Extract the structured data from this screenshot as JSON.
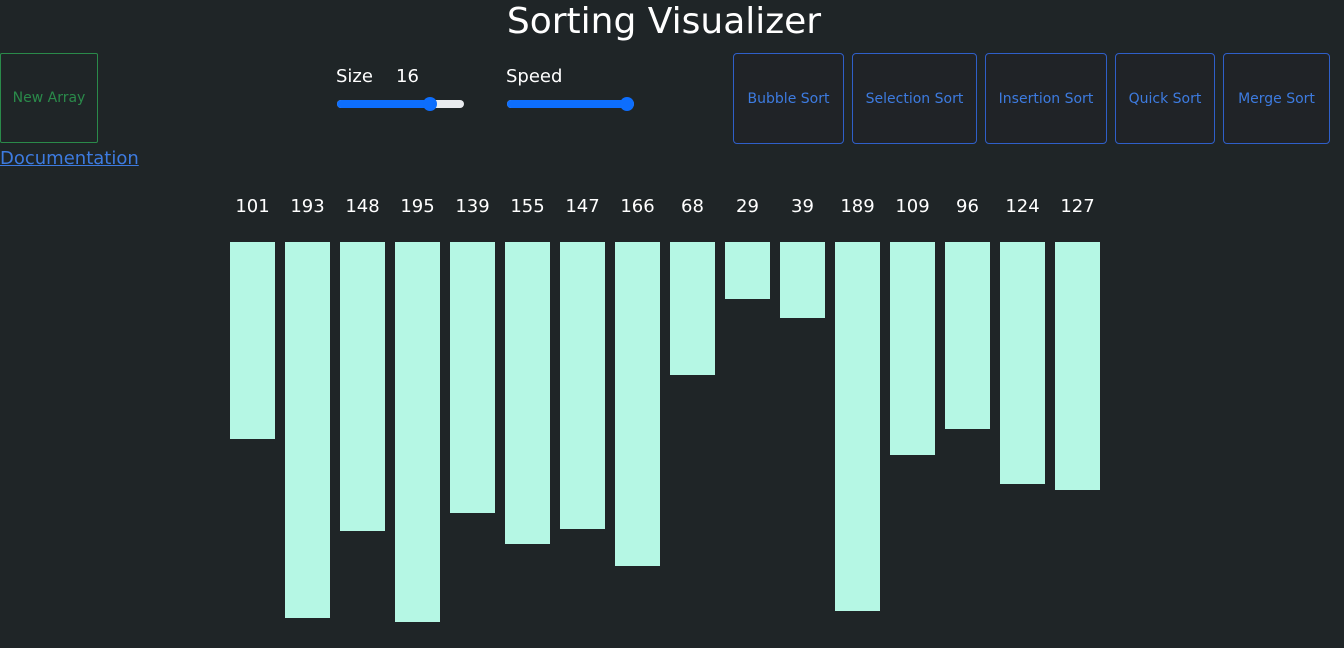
{
  "header": {
    "title": "Sorting Visualizer"
  },
  "controls": {
    "new_array_label": "New Array",
    "documentation_label": "Documentation",
    "size": {
      "label": "Size",
      "value": "16",
      "fraction": 0.73
    },
    "speed": {
      "label": "Speed",
      "fraction": 1.0
    }
  },
  "algorithms": [
    {
      "label": "Bubble Sort"
    },
    {
      "label": "Selection Sort"
    },
    {
      "label": "Insertion Sort"
    },
    {
      "label": "Quick Sort"
    },
    {
      "label": "Merge Sort"
    }
  ],
  "chart_data": {
    "type": "bar",
    "values": [
      101,
      193,
      148,
      195,
      139,
      155,
      147,
      166,
      68,
      29,
      39,
      189,
      109,
      96,
      124,
      127
    ]
  },
  "colors": {
    "background": "#1f2527",
    "bar": "#b5f7e4",
    "accent_blue": "#0d6efd",
    "button_green": "#2a8a4a",
    "link_blue": "#3d7be0"
  }
}
